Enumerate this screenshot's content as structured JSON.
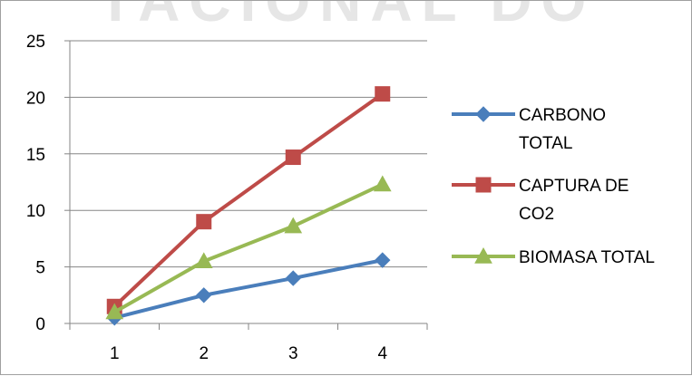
{
  "watermark": "TACIONAL DO",
  "chart_data": {
    "type": "line",
    "categories": [
      "1",
      "2",
      "3",
      "4"
    ],
    "y_ticks": [
      "0",
      "5",
      "10",
      "15",
      "20",
      "25"
    ],
    "ylim": [
      0,
      25
    ],
    "grid": "horizontal",
    "legend_position": "right",
    "series": [
      {
        "name": "CARBONO TOTAL",
        "name_lines": [
          "CARBONO",
          "TOTAL"
        ],
        "color": "#4a7ebb",
        "marker": "diamond",
        "values": [
          0.5,
          2.5,
          4.0,
          5.6
        ]
      },
      {
        "name": "CAPTURA DE CO2",
        "name_lines": [
          "CAPTURA DE",
          "CO2"
        ],
        "color": "#be4b48",
        "marker": "square",
        "values": [
          1.5,
          9.0,
          14.7,
          20.3
        ]
      },
      {
        "name": "BIOMASA TOTAL",
        "name_lines": [
          "BIOMASA TOTAL"
        ],
        "color": "#98b954",
        "marker": "triangle",
        "values": [
          1.0,
          5.5,
          8.6,
          12.3
        ]
      }
    ]
  }
}
